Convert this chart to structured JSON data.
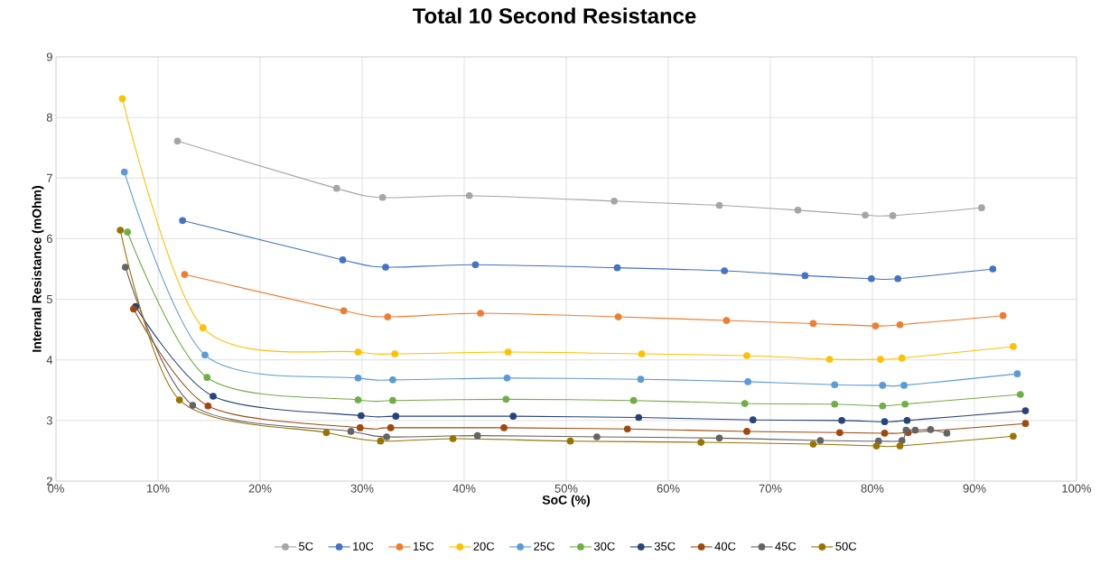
{
  "chart_data": {
    "type": "line",
    "title": "Total 10 Second Resistance",
    "xlabel": "SoC (%)",
    "ylabel": "Internal Resistance (mOhm)",
    "xlim": [
      0,
      100
    ],
    "ylim": [
      2,
      9
    ],
    "xticks": [
      {
        "value": 0,
        "label": "0%"
      },
      {
        "value": 10,
        "label": "10%"
      },
      {
        "value": 20,
        "label": "20%"
      },
      {
        "value": 30,
        "label": "30%"
      },
      {
        "value": 40,
        "label": "40%"
      },
      {
        "value": 50,
        "label": "50%"
      },
      {
        "value": 60,
        "label": "60%"
      },
      {
        "value": 70,
        "label": "70%"
      },
      {
        "value": 80,
        "label": "80%"
      },
      {
        "value": 90,
        "label": "90%"
      },
      {
        "value": 100,
        "label": "100%"
      }
    ],
    "yticks": [
      2,
      3,
      4,
      5,
      6,
      7,
      8,
      9
    ],
    "grid": true,
    "legend": "bottom",
    "marker": "circle",
    "line_style": "solid",
    "series": [
      {
        "name": "5C",
        "color": "#a5a5a5",
        "x": [
          11.9,
          27.5,
          32.0,
          40.5,
          54.7,
          65.0,
          72.7,
          79.3,
          82.0,
          90.7
        ],
        "values": [
          7.61,
          6.83,
          6.68,
          6.71,
          6.62,
          6.55,
          6.47,
          6.39,
          6.38,
          6.51
        ]
      },
      {
        "name": "10C",
        "color": "#4472c4",
        "x": [
          12.4,
          28.1,
          32.3,
          41.1,
          55.0,
          65.5,
          73.4,
          79.9,
          82.5,
          91.8
        ],
        "values": [
          6.3,
          5.65,
          5.53,
          5.57,
          5.52,
          5.47,
          5.39,
          5.34,
          5.34,
          5.5
        ]
      },
      {
        "name": "15C",
        "color": "#ed7d31",
        "x": [
          12.6,
          28.2,
          32.5,
          41.6,
          55.1,
          65.7,
          74.2,
          80.3,
          82.7,
          92.8
        ],
        "values": [
          5.41,
          4.81,
          4.71,
          4.77,
          4.71,
          4.65,
          4.6,
          4.56,
          4.58,
          4.73
        ]
      },
      {
        "name": "20C",
        "color": "#ffc000",
        "x": [
          6.5,
          14.4,
          29.6,
          33.2,
          44.3,
          57.4,
          67.7,
          75.8,
          80.8,
          82.9,
          93.8
        ],
        "values": [
          8.31,
          4.53,
          4.13,
          4.1,
          4.13,
          4.1,
          4.07,
          4.01,
          4.01,
          4.03,
          4.22
        ]
      },
      {
        "name": "25C",
        "color": "#5b9bd5",
        "x": [
          6.7,
          14.6,
          29.6,
          33.0,
          44.2,
          57.3,
          67.8,
          76.3,
          81.0,
          83.1,
          94.2
        ],
        "values": [
          7.1,
          4.08,
          3.7,
          3.67,
          3.7,
          3.68,
          3.64,
          3.59,
          3.58,
          3.58,
          3.77
        ]
      },
      {
        "name": "30C",
        "color": "#70ad47",
        "x": [
          7.0,
          14.8,
          29.6,
          33.0,
          44.1,
          56.6,
          67.5,
          76.3,
          81.0,
          83.2,
          94.5
        ],
        "values": [
          6.11,
          3.71,
          3.34,
          3.33,
          3.35,
          3.33,
          3.28,
          3.27,
          3.24,
          3.27,
          3.43
        ]
      },
      {
        "name": "35C",
        "color": "#264478",
        "x": [
          7.8,
          15.4,
          29.9,
          33.3,
          44.8,
          57.1,
          68.3,
          77.0,
          81.2,
          83.4,
          95.0
        ],
        "values": [
          4.88,
          3.4,
          3.08,
          3.07,
          3.07,
          3.05,
          3.01,
          3.0,
          2.98,
          3.0,
          3.16
        ]
      },
      {
        "name": "40C",
        "color": "#9e480e",
        "x": [
          7.6,
          14.9,
          29.8,
          32.8,
          43.9,
          56.0,
          67.7,
          76.8,
          81.2,
          83.5,
          95.0
        ],
        "values": [
          4.84,
          3.24,
          2.88,
          2.88,
          2.88,
          2.86,
          2.82,
          2.8,
          2.79,
          2.8,
          2.95
        ]
      },
      {
        "name": "45C",
        "color": "#636363",
        "x": [
          6.8,
          13.4,
          28.9,
          32.4,
          41.3,
          53.0,
          65.0,
          74.9,
          80.6,
          82.9,
          83.3,
          84.2,
          85.7,
          87.3
        ],
        "values": [
          5.53,
          3.25,
          2.82,
          2.73,
          2.75,
          2.73,
          2.71,
          2.67,
          2.66,
          2.67,
          2.84,
          2.84,
          2.85,
          2.79
        ]
      },
      {
        "name": "50C",
        "color": "#997300",
        "x": [
          6.3,
          12.1,
          26.5,
          31.8,
          38.9,
          50.4,
          63.2,
          74.2,
          80.4,
          82.7,
          93.8
        ],
        "values": [
          6.14,
          3.34,
          2.8,
          2.66,
          2.7,
          2.66,
          2.64,
          2.61,
          2.58,
          2.58,
          2.74
        ]
      }
    ]
  }
}
